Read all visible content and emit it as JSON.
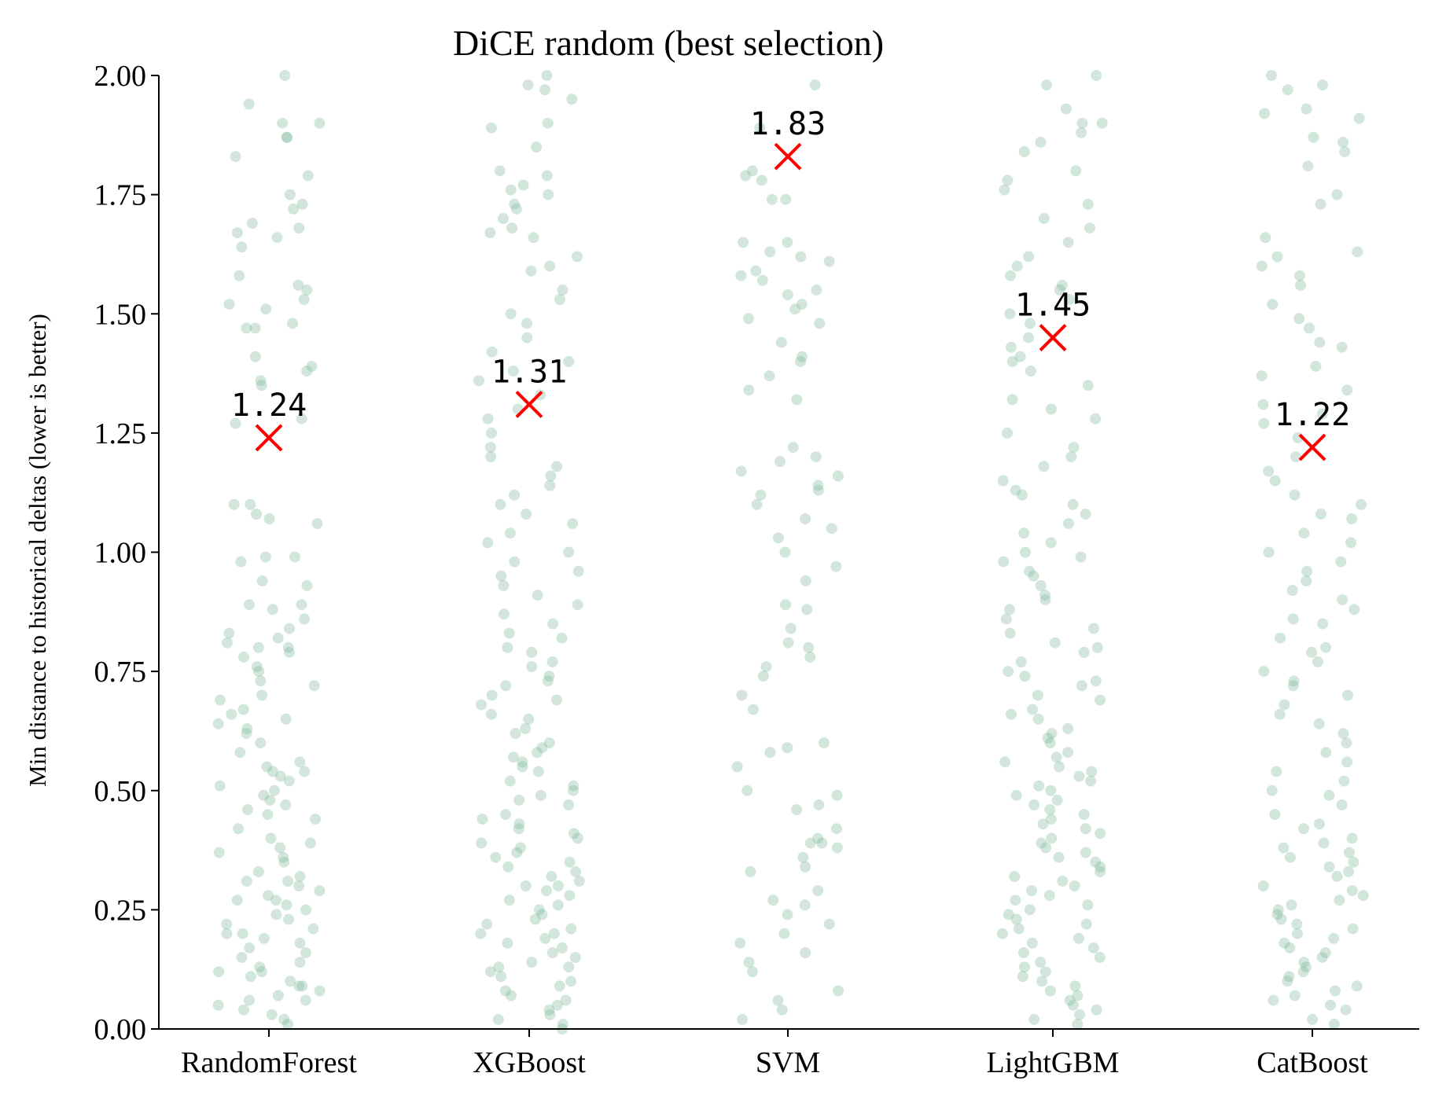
{
  "chart_data": {
    "type": "scatter",
    "title": "DiCE random (best selection)",
    "ylabel": "Min distance to historical deltas (lower is better)",
    "xlabel": "",
    "categories": [
      "RandomForest",
      "XGBoost",
      "SVM",
      "LightGBM",
      "CatBoost"
    ],
    "ylim": [
      0,
      2
    ],
    "yticks": [
      "0.00",
      "0.25",
      "0.50",
      "0.75",
      "1.00",
      "1.25",
      "1.50",
      "1.75",
      "2.00"
    ],
    "grid": false,
    "point_color": "#7fb69a",
    "marker_color": "#ff0000",
    "summary": [
      {
        "category": "RandomForest",
        "value": 1.24,
        "label": "1.24"
      },
      {
        "category": "XGBoost",
        "value": 1.31,
        "label": "1.31"
      },
      {
        "category": "SVM",
        "value": 1.83,
        "label": "1.83"
      },
      {
        "category": "LightGBM",
        "value": 1.45,
        "label": "1.45"
      },
      {
        "category": "CatBoost",
        "value": 1.22,
        "label": "1.22"
      }
    ],
    "series": [
      {
        "category": "RandomForest",
        "values": [
          2.0,
          1.94,
          1.9,
          1.9,
          1.87,
          1.87,
          1.83,
          1.79,
          1.75,
          1.73,
          1.72,
          1.69,
          1.68,
          1.67,
          1.66,
          1.64,
          1.58,
          1.56,
          1.55,
          1.53,
          1.52,
          1.51,
          1.48,
          1.47,
          1.47,
          1.41,
          1.39,
          1.38,
          1.36,
          1.35,
          1.28,
          1.27,
          1.1,
          1.1,
          1.08,
          1.07,
          1.06,
          0.99,
          0.99,
          0.98,
          0.94,
          0.93,
          0.89,
          0.89,
          0.88,
          0.86,
          0.84,
          0.83,
          0.82,
          0.81,
          0.8,
          0.8,
          0.79,
          0.78,
          0.76,
          0.75,
          0.73,
          0.72,
          0.7,
          0.69,
          0.67,
          0.66,
          0.65,
          0.64,
          0.63,
          0.62,
          0.6,
          0.58,
          0.56,
          0.55,
          0.54,
          0.54,
          0.53,
          0.52,
          0.51,
          0.5,
          0.49,
          0.48,
          0.47,
          0.46,
          0.45,
          0.44,
          0.42,
          0.4,
          0.39,
          0.38,
          0.37,
          0.36,
          0.35,
          0.33,
          0.32,
          0.31,
          0.31,
          0.3,
          0.29,
          0.28,
          0.27,
          0.27,
          0.26,
          0.25,
          0.24,
          0.23,
          0.22,
          0.21,
          0.2,
          0.2,
          0.19,
          0.18,
          0.17,
          0.16,
          0.15,
          0.14,
          0.13,
          0.12,
          0.12,
          0.11,
          0.1,
          0.09,
          0.09,
          0.08,
          0.07,
          0.06,
          0.06,
          0.05,
          0.04,
          0.03,
          0.02,
          0.01
        ]
      },
      {
        "category": "XGBoost",
        "values": [
          2.0,
          1.98,
          1.97,
          1.95,
          1.9,
          1.89,
          1.85,
          1.8,
          1.79,
          1.77,
          1.76,
          1.75,
          1.73,
          1.72,
          1.7,
          1.68,
          1.67,
          1.66,
          1.62,
          1.6,
          1.59,
          1.55,
          1.53,
          1.5,
          1.48,
          1.45,
          1.42,
          1.4,
          1.38,
          1.36,
          1.33,
          1.3,
          1.28,
          1.25,
          1.22,
          1.2,
          1.18,
          1.16,
          1.14,
          1.12,
          1.1,
          1.08,
          1.06,
          1.04,
          1.02,
          1.0,
          0.98,
          0.96,
          0.95,
          0.93,
          0.91,
          0.89,
          0.87,
          0.85,
          0.83,
          0.82,
          0.8,
          0.79,
          0.77,
          0.76,
          0.74,
          0.73,
          0.72,
          0.7,
          0.69,
          0.68,
          0.66,
          0.65,
          0.63,
          0.62,
          0.6,
          0.59,
          0.58,
          0.57,
          0.56,
          0.55,
          0.54,
          0.52,
          0.51,
          0.5,
          0.49,
          0.48,
          0.47,
          0.45,
          0.44,
          0.43,
          0.42,
          0.41,
          0.4,
          0.39,
          0.38,
          0.37,
          0.36,
          0.35,
          0.34,
          0.33,
          0.32,
          0.31,
          0.3,
          0.3,
          0.29,
          0.28,
          0.27,
          0.26,
          0.25,
          0.24,
          0.23,
          0.22,
          0.21,
          0.2,
          0.2,
          0.19,
          0.18,
          0.17,
          0.16,
          0.15,
          0.14,
          0.13,
          0.13,
          0.12,
          0.11,
          0.1,
          0.09,
          0.08,
          0.07,
          0.06,
          0.05,
          0.04,
          0.03,
          0.02,
          0.01,
          0.0
        ]
      },
      {
        "category": "SVM",
        "values": [
          1.98,
          1.89,
          1.8,
          1.79,
          1.78,
          1.74,
          1.74,
          1.65,
          1.65,
          1.63,
          1.62,
          1.61,
          1.59,
          1.58,
          1.57,
          1.55,
          1.54,
          1.52,
          1.51,
          1.49,
          1.48,
          1.44,
          1.41,
          1.4,
          1.37,
          1.34,
          1.32,
          1.22,
          1.2,
          1.19,
          1.17,
          1.16,
          1.14,
          1.13,
          1.12,
          1.1,
          1.07,
          1.05,
          1.03,
          1.0,
          0.97,
          0.94,
          0.89,
          0.88,
          0.84,
          0.81,
          0.8,
          0.78,
          0.76,
          0.74,
          0.7,
          0.67,
          0.6,
          0.59,
          0.58,
          0.55,
          0.5,
          0.49,
          0.47,
          0.46,
          0.42,
          0.4,
          0.39,
          0.39,
          0.38,
          0.36,
          0.34,
          0.33,
          0.29,
          0.27,
          0.26,
          0.24,
          0.22,
          0.2,
          0.18,
          0.16,
          0.14,
          0.12,
          0.08,
          0.06,
          0.04,
          0.02
        ]
      },
      {
        "category": "LightGBM",
        "values": [
          2.0,
          1.98,
          1.93,
          1.9,
          1.9,
          1.88,
          1.86,
          1.84,
          1.8,
          1.78,
          1.76,
          1.73,
          1.7,
          1.68,
          1.65,
          1.62,
          1.6,
          1.58,
          1.56,
          1.55,
          1.53,
          1.5,
          1.48,
          1.45,
          1.43,
          1.41,
          1.4,
          1.38,
          1.35,
          1.32,
          1.3,
          1.28,
          1.25,
          1.22,
          1.2,
          1.18,
          1.15,
          1.13,
          1.12,
          1.1,
          1.08,
          1.06,
          1.04,
          1.02,
          1.0,
          0.99,
          0.98,
          0.96,
          0.95,
          0.93,
          0.91,
          0.9,
          0.88,
          0.86,
          0.84,
          0.83,
          0.81,
          0.8,
          0.79,
          0.77,
          0.75,
          0.74,
          0.73,
          0.72,
          0.7,
          0.69,
          0.67,
          0.66,
          0.65,
          0.63,
          0.62,
          0.61,
          0.6,
          0.58,
          0.57,
          0.56,
          0.55,
          0.54,
          0.53,
          0.52,
          0.51,
          0.5,
          0.49,
          0.48,
          0.47,
          0.46,
          0.45,
          0.44,
          0.43,
          0.42,
          0.41,
          0.4,
          0.39,
          0.38,
          0.37,
          0.36,
          0.35,
          0.34,
          0.33,
          0.32,
          0.31,
          0.3,
          0.29,
          0.28,
          0.27,
          0.26,
          0.25,
          0.24,
          0.23,
          0.22,
          0.21,
          0.2,
          0.19,
          0.18,
          0.17,
          0.16,
          0.15,
          0.14,
          0.13,
          0.12,
          0.11,
          0.1,
          0.09,
          0.08,
          0.07,
          0.06,
          0.05,
          0.04,
          0.03,
          0.02,
          0.01
        ]
      },
      {
        "category": "CatBoost",
        "values": [
          2.0,
          1.98,
          1.97,
          1.93,
          1.92,
          1.91,
          1.87,
          1.86,
          1.84,
          1.81,
          1.75,
          1.73,
          1.66,
          1.63,
          1.62,
          1.6,
          1.58,
          1.56,
          1.52,
          1.49,
          1.47,
          1.44,
          1.43,
          1.39,
          1.37,
          1.34,
          1.31,
          1.29,
          1.27,
          1.24,
          1.2,
          1.17,
          1.15,
          1.12,
          1.1,
          1.08,
          1.07,
          1.04,
          1.02,
          1.0,
          0.98,
          0.96,
          0.94,
          0.92,
          0.9,
          0.88,
          0.86,
          0.85,
          0.82,
          0.8,
          0.79,
          0.77,
          0.75,
          0.73,
          0.72,
          0.7,
          0.68,
          0.66,
          0.64,
          0.62,
          0.6,
          0.58,
          0.56,
          0.54,
          0.52,
          0.5,
          0.49,
          0.47,
          0.45,
          0.43,
          0.42,
          0.4,
          0.39,
          0.38,
          0.37,
          0.36,
          0.35,
          0.34,
          0.33,
          0.32,
          0.3,
          0.29,
          0.28,
          0.27,
          0.26,
          0.25,
          0.24,
          0.23,
          0.22,
          0.21,
          0.2,
          0.19,
          0.18,
          0.17,
          0.16,
          0.15,
          0.14,
          0.13,
          0.12,
          0.11,
          0.1,
          0.09,
          0.08,
          0.07,
          0.06,
          0.05,
          0.04,
          0.02,
          0.01
        ]
      }
    ]
  }
}
